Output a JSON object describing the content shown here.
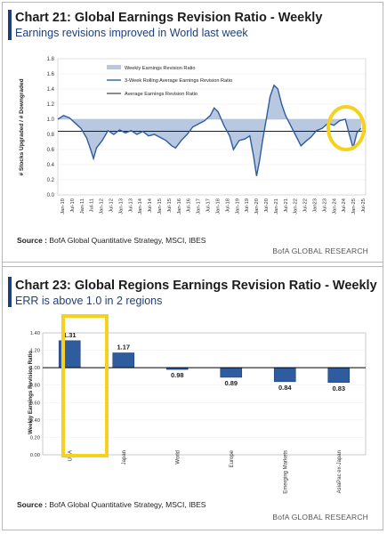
{
  "chart21": {
    "title": "Chart 21: Global Earnings Revision Ratio - Weekly",
    "subtitle": "Earnings revisions improved in World last week",
    "source_label": "Source :",
    "source_text": "BofA Global Quantitative Strategy, MSCI, IBES",
    "brand": "BofA GLOBAL RESEARCH"
  },
  "chart23": {
    "title": "Chart 23: Global Regions Earnings Revision Ratio - Weekly",
    "subtitle": "ERR is above 1.0 in 2 regions",
    "source_label": "Source :",
    "source_text": "BofA Global Quantitative Strategy, MSCI, IBES",
    "brand": "BofA GLOBAL RESEARCH"
  },
  "colors": {
    "navy": "#1f3f7a",
    "area_fill": "#b8c8e0",
    "bar_fill": "#2e5c9e",
    "highlight": "#f5d21e"
  },
  "chart_data": [
    {
      "type": "area",
      "ylabel": "# Stocks Upgraded / # Downgraded",
      "ylim": [
        0,
        1.8
      ],
      "yticks": [
        "0.0",
        "0.2",
        "0.4",
        "0.6",
        "0.8",
        "1.0",
        "1.2",
        "1.4",
        "1.6",
        "1.8"
      ],
      "xticks": [
        "Jan-10",
        "Jul-10",
        "Jan-11",
        "Jul-11",
        "Jan-12",
        "Jul-12",
        "Jan-13",
        "Jul-13",
        "Jan-14",
        "Jul-14",
        "Jan-15",
        "Jul-15",
        "Jan-16",
        "Jul-16",
        "Jan-17",
        "Jul-17",
        "Jan-18",
        "Jul-18",
        "Jan-19",
        "Jul-19",
        "Jan-20",
        "Jul-20",
        "Jan-21",
        "Jul-21",
        "Jan-22",
        "Jul-22",
        "Jan23",
        "Jul-23",
        "Jan-24",
        "Jul-24",
        "Jan-25",
        "Jul-25"
      ],
      "legend_position": "top-left",
      "series": [
        {
          "name": "Weekly Earnings Revision Ratio",
          "style": "area"
        },
        {
          "name": "3-Week Rolling Average Earnings Revision Ratio",
          "style": "line",
          "x": [
            2010.0,
            2010.3,
            2010.6,
            2010.9,
            2011.2,
            2011.5,
            2011.7,
            2011.85,
            2012.0,
            2012.3,
            2012.6,
            2012.9,
            2013.2,
            2013.5,
            2013.8,
            2014.1,
            2014.4,
            2014.7,
            2015.0,
            2015.3,
            2015.6,
            2015.9,
            2016.1,
            2016.4,
            2016.7,
            2017.0,
            2017.3,
            2017.6,
            2017.9,
            2018.1,
            2018.3,
            2018.6,
            2018.9,
            2019.1,
            2019.4,
            2019.7,
            2019.95,
            2020.15,
            2020.3,
            2020.45,
            2020.6,
            2020.8,
            2021.0,
            2021.2,
            2021.4,
            2021.6,
            2021.8,
            2022.0,
            2022.3,
            2022.6,
            2022.9,
            2023.1,
            2023.4,
            2023.7,
            2024.0,
            2024.3,
            2024.6,
            2024.9,
            2025.1,
            2025.3,
            2025.5,
            2025.7
          ],
          "y": [
            1.0,
            1.05,
            1.02,
            0.95,
            0.88,
            0.75,
            0.6,
            0.48,
            0.62,
            0.72,
            0.85,
            0.8,
            0.86,
            0.82,
            0.85,
            0.8,
            0.84,
            0.78,
            0.8,
            0.76,
            0.72,
            0.65,
            0.62,
            0.72,
            0.8,
            0.9,
            0.94,
            0.98,
            1.05,
            1.15,
            1.1,
            0.92,
            0.78,
            0.6,
            0.72,
            0.74,
            0.78,
            0.5,
            0.25,
            0.45,
            0.7,
            1.0,
            1.3,
            1.45,
            1.4,
            1.2,
            1.05,
            0.95,
            0.8,
            0.65,
            0.72,
            0.76,
            0.85,
            0.88,
            0.95,
            0.92,
            0.98,
            1.0,
            0.8,
            0.62,
            0.82,
            0.88
          ]
        },
        {
          "name": "Average Earnings Revision Ratio",
          "style": "flat",
          "y": 0.84
        }
      ]
    },
    {
      "type": "bar",
      "ylabel": "Weekly Earnings Revision Ratio",
      "ylim": [
        0,
        1.4
      ],
      "baseline": 1.0,
      "yticks": [
        "0.00",
        "0.20",
        "0.40",
        "0.60",
        "0.80",
        "1.00",
        "1.20",
        "1.40"
      ],
      "categories": [
        "USA",
        "Japan",
        "World",
        "Europe",
        "Emerging Markets",
        "AsiaPac ex-Japan"
      ],
      "values": [
        1.31,
        1.17,
        0.98,
        0.89,
        0.84,
        0.83
      ],
      "value_labels": [
        "1.31",
        "1.17",
        "0.98",
        "0.89",
        "0.84",
        "0.83"
      ],
      "highlighted_category": "USA"
    }
  ]
}
